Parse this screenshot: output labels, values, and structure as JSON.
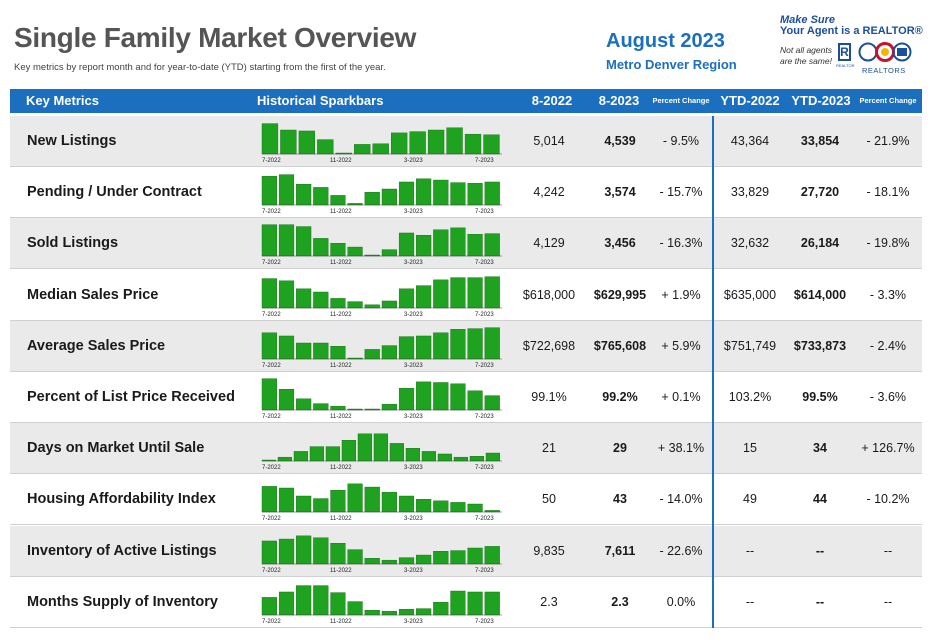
{
  "header": {
    "title": "Single Family Market Overview",
    "subtitle": "Key metrics by report month and for year-to-date (YTD) starting from the first of the year.",
    "report_month": "August 2023",
    "region": "Metro Denver Region"
  },
  "logo": {
    "line1": "Make Sure",
    "line2": "Your Agent is a REALTOR®",
    "note": "Not all agents are the same!",
    "r_mark": "R",
    "r_text": "REALTOR",
    "org": "REALTORS"
  },
  "columns": {
    "metric": "Key Metrics",
    "spark": "Historical Sparkbars",
    "month_prev": "8-2022",
    "month_curr": "8-2023",
    "month_change": "Percent Change",
    "ytd_prev": "YTD-2022",
    "ytd_curr": "YTD-2023",
    "ytd_change": "Percent Change"
  },
  "spark_axis_labels": [
    "7-2022",
    "11-2022",
    "3-2023",
    "7-2023"
  ],
  "colors": {
    "accent": "#1b6fbe",
    "bar": "#1fa21f",
    "row_shade": "#eaeaea"
  },
  "rows": [
    {
      "label": "New Listings",
      "m2022": "5,014",
      "m2023": "4,539",
      "mchg": "- 9.5%",
      "y2022": "43,364",
      "y2023": "33,854",
      "ychg": "- 21.9%",
      "spark": [
        0.95,
        0.75,
        0.72,
        0.45,
        0.03,
        0.3,
        0.32,
        0.66,
        0.7,
        0.75,
        0.82,
        0.62,
        0.6
      ]
    },
    {
      "label": "Pending / Under Contract",
      "m2022": "4,242",
      "m2023": "3,574",
      "mchg": "- 15.7%",
      "y2022": "33,829",
      "y2023": "27,720",
      "ychg": "- 18.1%",
      "spark": [
        0.9,
        0.95,
        0.65,
        0.55,
        0.3,
        0.05,
        0.4,
        0.5,
        0.72,
        0.82,
        0.78,
        0.7,
        0.68,
        0.72
      ]
    },
    {
      "label": "Sold Listings",
      "m2022": "4,129",
      "m2023": "3,456",
      "mchg": "- 16.3%",
      "y2022": "32,632",
      "y2023": "26,184",
      "ychg": "- 19.8%",
      "spark": [
        0.98,
        0.98,
        0.92,
        0.55,
        0.4,
        0.28,
        0.03,
        0.2,
        0.72,
        0.65,
        0.82,
        0.88,
        0.68,
        0.7
      ]
    },
    {
      "label": "Median Sales Price",
      "m2022": "$618,000",
      "m2023": "$629,995",
      "mchg": "+ 1.9%",
      "y2022": "$635,000",
      "y2023": "$614,000",
      "ychg": "- 3.3%",
      "spark": [
        0.92,
        0.85,
        0.6,
        0.5,
        0.3,
        0.2,
        0.1,
        0.22,
        0.6,
        0.7,
        0.88,
        0.95,
        0.95,
        0.98
      ]
    },
    {
      "label": "Average Sales Price",
      "m2022": "$722,698",
      "m2023": "$765,608",
      "mchg": "+ 5.9%",
      "y2022": "$751,749",
      "y2023": "$733,873",
      "ychg": "- 2.4%",
      "spark": [
        0.82,
        0.72,
        0.5,
        0.5,
        0.4,
        0.02,
        0.3,
        0.42,
        0.7,
        0.72,
        0.82,
        0.93,
        0.95,
        0.98
      ]
    },
    {
      "label": "Percent of List Price Received",
      "m2022": "99.1%",
      "m2023": "99.2%",
      "mchg": "+ 0.1%",
      "y2022": "103.2%",
      "y2023": "99.5%",
      "ychg": "- 3.6%",
      "spark": [
        0.98,
        0.65,
        0.35,
        0.2,
        0.12,
        0.03,
        0.02,
        0.18,
        0.68,
        0.88,
        0.86,
        0.82,
        0.6,
        0.45
      ]
    },
    {
      "label": "Days on Market Until Sale",
      "m2022": "21",
      "m2023": "29",
      "mchg": "+ 38.1%",
      "y2022": "15",
      "y2023": "34",
      "ychg": "+ 126.7%",
      "spark": [
        0.02,
        0.12,
        0.3,
        0.45,
        0.45,
        0.65,
        0.85,
        0.85,
        0.55,
        0.4,
        0.3,
        0.22,
        0.12,
        0.15,
        0.25
      ]
    },
    {
      "label": "Housing Affordability Index",
      "m2022": "50",
      "m2023": "43",
      "mchg": "- 14.0%",
      "y2022": "49",
      "y2023": "44",
      "ychg": "- 10.2%",
      "spark": [
        0.8,
        0.75,
        0.5,
        0.42,
        0.68,
        0.88,
        0.78,
        0.62,
        0.5,
        0.4,
        0.35,
        0.3,
        0.25,
        0.05
      ]
    },
    {
      "label": "Inventory of Active Listings",
      "m2022": "9,835",
      "m2023": "7,611",
      "mchg": "- 22.6%",
      "y2022": "--",
      "y2023": "--",
      "ychg": "--",
      "spark": [
        0.72,
        0.78,
        0.88,
        0.82,
        0.65,
        0.45,
        0.18,
        0.12,
        0.2,
        0.28,
        0.4,
        0.42,
        0.5,
        0.55
      ]
    },
    {
      "label": "Months Supply of Inventory",
      "m2022": "2.3",
      "m2023": "2.3",
      "mchg": "0.0%",
      "y2022": "--",
      "y2023": "--",
      "ychg": "--",
      "spark": [
        0.55,
        0.72,
        0.92,
        0.92,
        0.7,
        0.42,
        0.15,
        0.12,
        0.18,
        0.2,
        0.4,
        0.75,
        0.72,
        0.72
      ]
    }
  ]
}
